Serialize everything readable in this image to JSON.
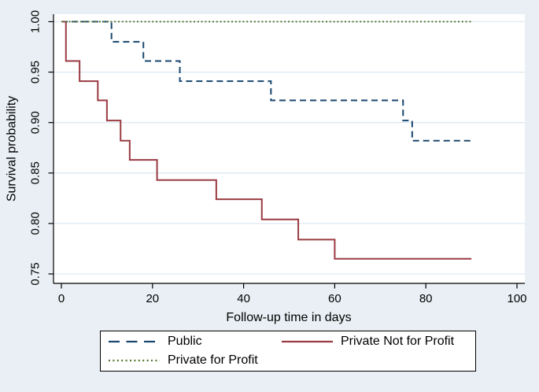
{
  "figure": {
    "background_color": "#e9eff4",
    "plot_background_color": "#ffffff",
    "grid_color": "#dde9f3",
    "axis_color": "#000000"
  },
  "chart_data": {
    "type": "line",
    "variant": "kaplan-meier-step-survival",
    "title": "",
    "xlabel": "Follow-up time in days",
    "ylabel": "Survival probability",
    "xlim": [
      0,
      100
    ],
    "ylim": [
      0.75,
      1.0
    ],
    "x_ticks": [
      0,
      20,
      40,
      60,
      80,
      100
    ],
    "x_tick_labels": [
      "0",
      "20",
      "40",
      "60",
      "80",
      "100"
    ],
    "y_ticks": [
      0.75,
      0.8,
      0.85,
      0.9,
      0.95,
      1.0
    ],
    "y_tick_labels": [
      "0.75",
      "0.80",
      "0.85",
      "0.90",
      "0.95",
      "1.00"
    ],
    "grid": "horizontal",
    "legend_position": "bottom",
    "follow_up_end_day": 90,
    "series": [
      {
        "name": "Public",
        "color": "#1a476f",
        "line_style": "dashed",
        "steps": [
          [
            0,
            1.0
          ],
          [
            11,
            0.98
          ],
          [
            18,
            0.961
          ],
          [
            26,
            0.941
          ],
          [
            46,
            0.922
          ],
          [
            75,
            0.902
          ],
          [
            77,
            0.882
          ]
        ]
      },
      {
        "name": "Private Not for Profit",
        "color": "#9a3a42",
        "line_style": "solid",
        "steps": [
          [
            0,
            1.0
          ],
          [
            1,
            0.961
          ],
          [
            4,
            0.941
          ],
          [
            8,
            0.922
          ],
          [
            10,
            0.902
          ],
          [
            13,
            0.882
          ],
          [
            15,
            0.863
          ],
          [
            21,
            0.843
          ],
          [
            34,
            0.824
          ],
          [
            44,
            0.804
          ],
          [
            52,
            0.784
          ],
          [
            60,
            0.765
          ]
        ]
      },
      {
        "name": "Private for Profit",
        "color": "#55752f",
        "line_style": "dotted",
        "steps": [
          [
            0,
            1.0
          ]
        ]
      }
    ]
  },
  "axes": {
    "x_title": "Follow-up time in days",
    "y_title": "Survival probability"
  },
  "legend": {
    "entries": [
      {
        "label": "Public"
      },
      {
        "label": "Private Not for Profit"
      },
      {
        "label": "Private for Profit"
      }
    ]
  }
}
